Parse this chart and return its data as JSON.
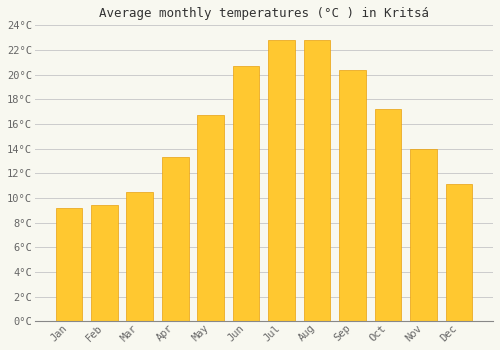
{
  "title": "Average monthly temperatures (°C ) in Kritsá",
  "months": [
    "Jan",
    "Feb",
    "Mar",
    "Apr",
    "May",
    "Jun",
    "Jul",
    "Aug",
    "Sep",
    "Oct",
    "Nov",
    "Dec"
  ],
  "values": [
    9.2,
    9.4,
    10.5,
    13.3,
    16.7,
    20.7,
    22.8,
    22.8,
    20.4,
    17.2,
    14.0,
    11.1
  ],
  "bar_color_top": "#FFC830",
  "bar_color_bottom": "#FFB020",
  "bar_edge_color": "#E8A010",
  "background_color": "#F8F8F0",
  "grid_color": "#CCCCCC",
  "ytick_labels": [
    "0°C",
    "2°C",
    "4°C",
    "6°C",
    "8°C",
    "10°C",
    "12°C",
    "14°C",
    "16°C",
    "18°C",
    "20°C",
    "22°C",
    "24°C"
  ],
  "ytick_values": [
    0,
    2,
    4,
    6,
    8,
    10,
    12,
    14,
    16,
    18,
    20,
    22,
    24
  ],
  "ylim": [
    0,
    24
  ],
  "title_fontsize": 9,
  "tick_fontsize": 7.5,
  "font_family": "monospace",
  "text_color": "#666666"
}
